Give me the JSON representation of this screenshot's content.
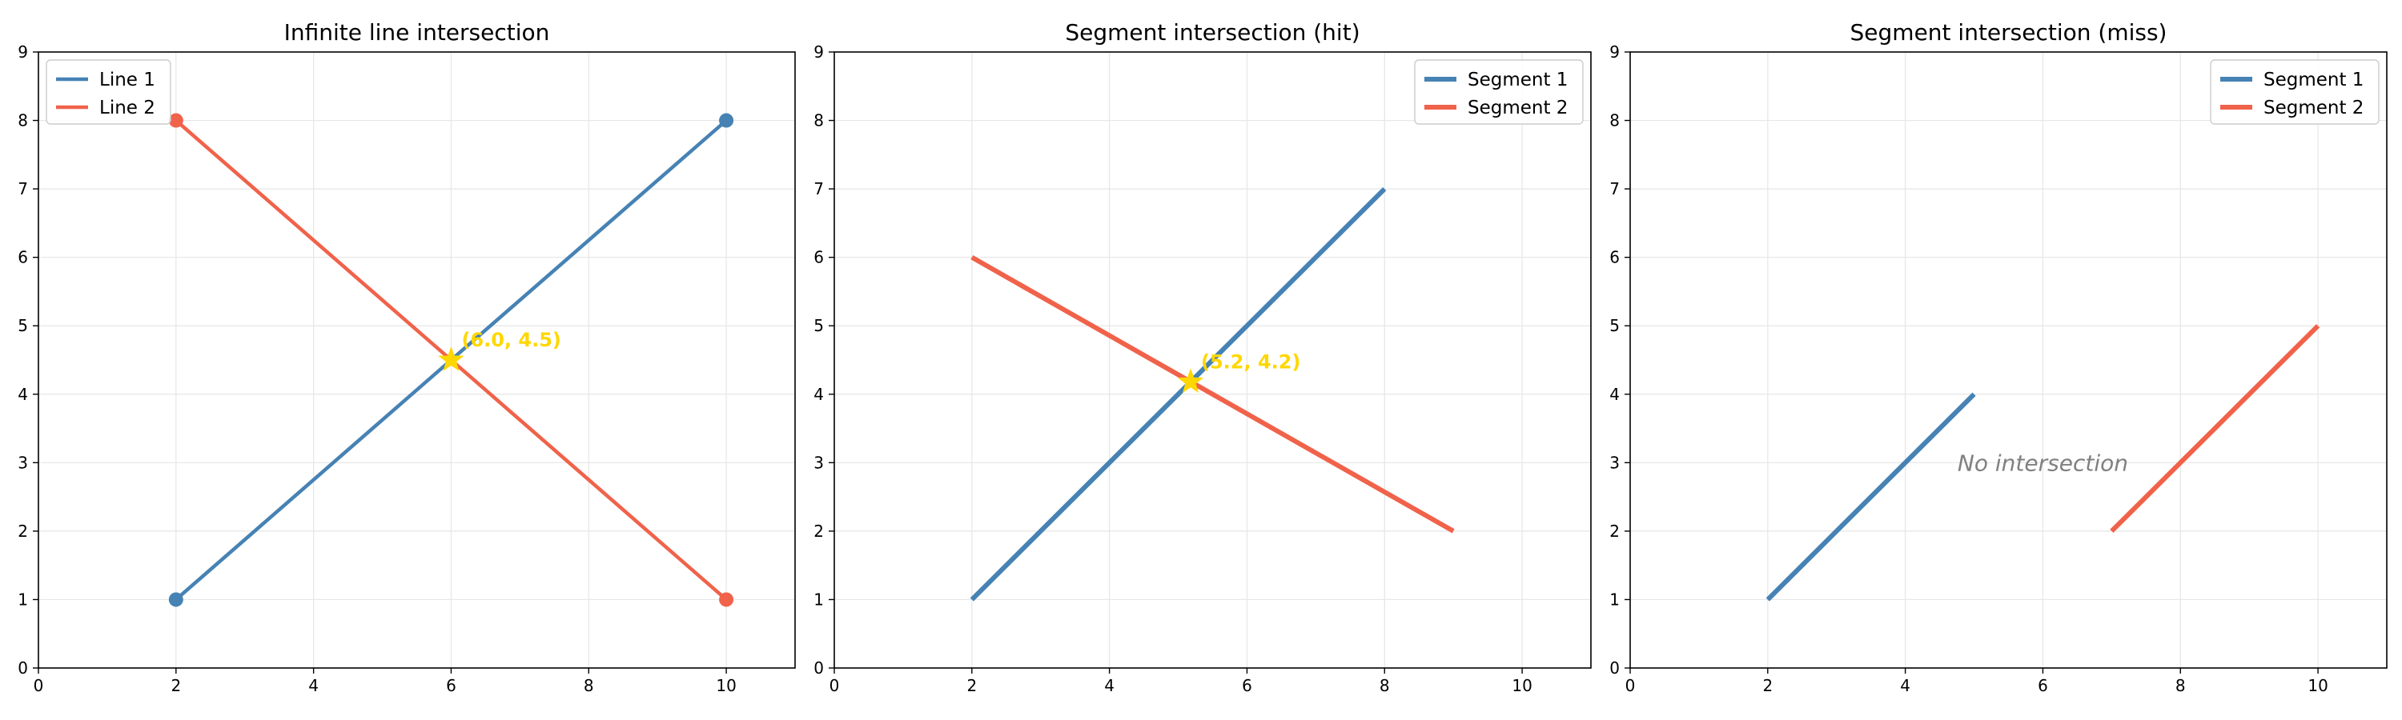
{
  "chart_data": [
    {
      "type": "line",
      "title": "Infinite line intersection",
      "xlim": [
        0,
        11
      ],
      "ylim": [
        0,
        9
      ],
      "x_ticks": [
        0,
        2,
        4,
        6,
        8,
        10
      ],
      "y_ticks": [
        0,
        1,
        2,
        3,
        4,
        5,
        6,
        7,
        8,
        9
      ],
      "grid": true,
      "legend_position": "top-left",
      "series": [
        {
          "name": "Line 1",
          "color": "#4682b4",
          "points": [
            [
              2,
              1
            ],
            [
              10,
              8
            ]
          ],
          "markers": true
        },
        {
          "name": "Line 2",
          "color": "#f0624a",
          "points": [
            [
              2,
              8
            ],
            [
              10,
              1
            ]
          ],
          "markers": true
        }
      ],
      "intersection": {
        "x": 6.0,
        "y": 4.5,
        "label": "(6.0, 4.5)",
        "color": "#ffd700"
      },
      "note": ""
    },
    {
      "type": "line",
      "title": "Segment intersection (hit)",
      "xlim": [
        0,
        11
      ],
      "ylim": [
        0,
        9
      ],
      "x_ticks": [
        0,
        2,
        4,
        6,
        8,
        10
      ],
      "y_ticks": [
        0,
        1,
        2,
        3,
        4,
        5,
        6,
        7,
        8,
        9
      ],
      "grid": true,
      "legend_position": "top-right",
      "series": [
        {
          "name": "Segment 1",
          "color": "#4682b4",
          "points": [
            [
              2,
              1
            ],
            [
              8,
              7
            ]
          ],
          "markers": false
        },
        {
          "name": "Segment 2",
          "color": "#f0624a",
          "points": [
            [
              2,
              6
            ],
            [
              9,
              2
            ]
          ],
          "markers": false
        }
      ],
      "intersection": {
        "x": 5.18,
        "y": 4.18,
        "label": "(5.2, 4.2)",
        "color": "#ffd700"
      },
      "note": ""
    },
    {
      "type": "line",
      "title": "Segment intersection (miss)",
      "xlim": [
        0,
        11
      ],
      "ylim": [
        0,
        9
      ],
      "x_ticks": [
        0,
        2,
        4,
        6,
        8,
        10
      ],
      "y_ticks": [
        0,
        1,
        2,
        3,
        4,
        5,
        6,
        7,
        8,
        9
      ],
      "grid": true,
      "legend_position": "top-right",
      "series": [
        {
          "name": "Segment 1",
          "color": "#4682b4",
          "points": [
            [
              2,
              1
            ],
            [
              5,
              4
            ]
          ],
          "markers": false
        },
        {
          "name": "Segment 2",
          "color": "#f0624a",
          "points": [
            [
              7,
              2
            ],
            [
              10,
              5
            ]
          ],
          "markers": false
        }
      ],
      "intersection": null,
      "note": "No intersection"
    }
  ]
}
